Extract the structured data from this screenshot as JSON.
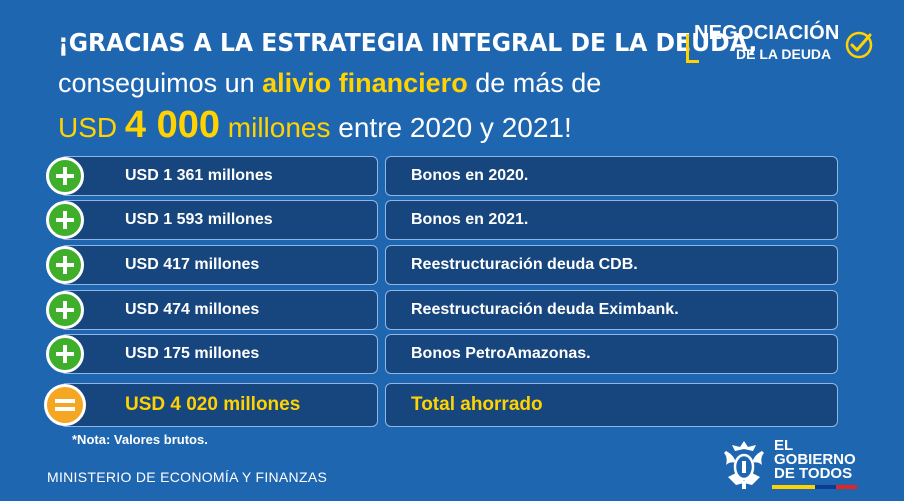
{
  "headline": {
    "line1": "¡GRACIAS A LA ESTRATEGIA INTEGRAL DE LA DEUDA,",
    "line2_pre": "conseguimos un ",
    "line2_highlight": "alivio financiero",
    "line2_post": " de más de",
    "line3_currency": "USD",
    "line3_amount": "4 000",
    "line3_post": " millones",
    "line3_tail": " entre 2020 y 2021!"
  },
  "logo": {
    "line1": "NEGOCIACIÓN",
    "line2": "DE LA DEUDA",
    "icon": "check-circle-icon"
  },
  "rows": [
    {
      "amount": "USD 1 361 millones",
      "description": "Bonos en 2020.",
      "icon": "plus-icon"
    },
    {
      "amount": "USD 1 593 millones",
      "description": "Bonos en 2021.",
      "icon": "plus-icon"
    },
    {
      "amount": "USD 417 millones",
      "description": "Reestructuración deuda CDB.",
      "icon": "plus-icon"
    },
    {
      "amount": "USD 474 millones",
      "description": "Reestructuración deuda Eximbank.",
      "icon": "plus-icon"
    },
    {
      "amount": "USD 175 millones",
      "description": "Bonos PetroAmazonas.",
      "icon": "plus-icon"
    }
  ],
  "total": {
    "amount": "USD 4 020 millones",
    "description": "Total ahorrado",
    "icon": "equals-icon"
  },
  "note": "*Nota: Valores brutos.",
  "ministry": "MINISTERIO DE ECONOMÍA Y FINANZAS",
  "gov_logo": {
    "line1": "EL",
    "line2": "GOBIERNO",
    "line3": "DE TODOS"
  },
  "colors": {
    "background": "#1f66b1",
    "cell": "#16467d",
    "accent_yellow": "#ffd200",
    "plus_green": "#3fae2a",
    "equals_orange": "#f5a623"
  }
}
